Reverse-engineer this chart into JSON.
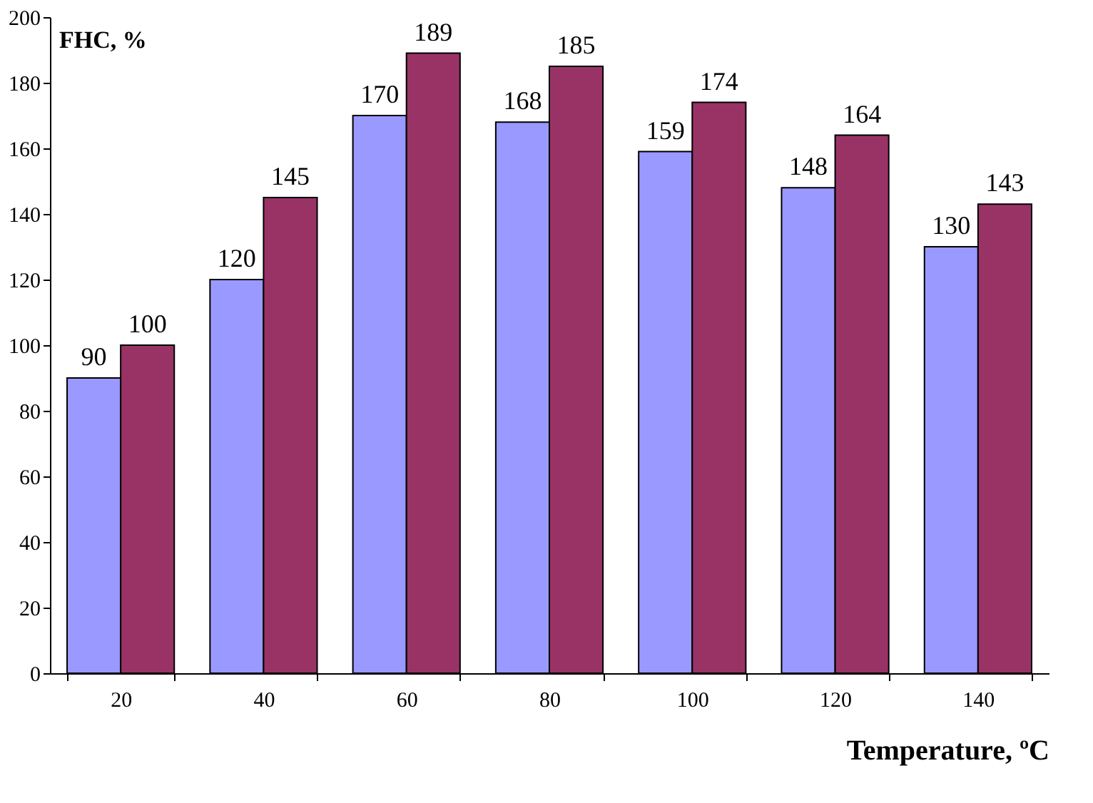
{
  "chart_data": {
    "type": "bar",
    "xlabel": "Temperature, ºC",
    "ylabel": "FHC, %",
    "categories": [
      "20",
      "40",
      "60",
      "80",
      "100",
      "120",
      "140"
    ],
    "series": [
      {
        "color": "#9999ff",
        "values": [
          90,
          120,
          170,
          168,
          159,
          148,
          130
        ]
      },
      {
        "color": "#993366",
        "values": [
          100,
          145,
          189,
          185,
          174,
          164,
          143
        ]
      }
    ],
    "ylim": [
      0,
      200
    ],
    "yticks": [
      0,
      20,
      40,
      60,
      80,
      100,
      120,
      140,
      160,
      180,
      200
    ],
    "grid": false,
    "legend": false,
    "data_labels": true
  }
}
